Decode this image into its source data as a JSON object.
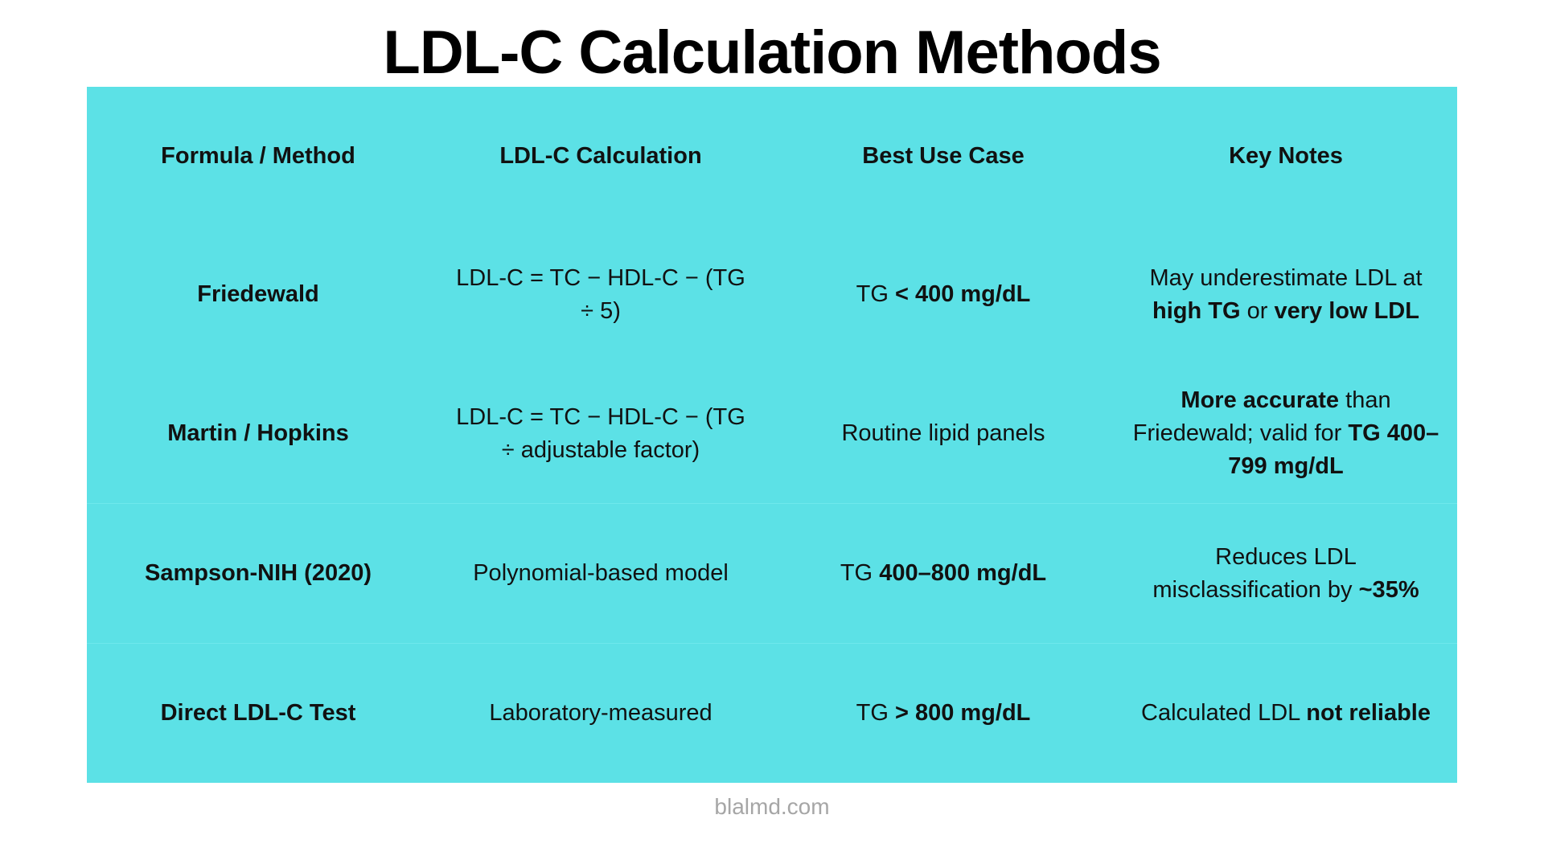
{
  "header": {
    "title": "LDL-C Calculation Methods"
  },
  "table": {
    "columns": [
      "Formula / Method",
      "LDL-C Calculation",
      "Best Use Case",
      "Key Notes"
    ],
    "rows": [
      [
        [
          {
            "text": "Friedewald",
            "bold": true
          }
        ],
        [
          {
            "text": "LDL-C = TC − HDL-C − (TG ÷ 5)",
            "bold": false
          }
        ],
        [
          {
            "text": "TG ",
            "bold": false
          },
          {
            "text": "< 400 mg/dL",
            "bold": true
          }
        ],
        [
          {
            "text": "May underestimate LDL at ",
            "bold": false
          },
          {
            "text": "high TG",
            "bold": true
          },
          {
            "text": " or ",
            "bold": false
          },
          {
            "text": "very low LDL",
            "bold": true
          }
        ]
      ],
      [
        [
          {
            "text": "Martin / Hopkins",
            "bold": true
          }
        ],
        [
          {
            "text": "LDL-C = TC − HDL-C − (TG ÷ adjustable factor)",
            "bold": false
          }
        ],
        [
          {
            "text": "Routine lipid panels",
            "bold": false
          }
        ],
        [
          {
            "text": "More accurate",
            "bold": true
          },
          {
            "text": " than Friedewald; valid for ",
            "bold": false
          },
          {
            "text": "TG 400–799 mg/dL",
            "bold": true
          }
        ]
      ],
      [
        [
          {
            "text": "Sampson-NIH (2020)",
            "bold": true
          }
        ],
        [
          {
            "text": "Polynomial-based model",
            "bold": false
          }
        ],
        [
          {
            "text": "TG ",
            "bold": false
          },
          {
            "text": "400–800 mg/dL",
            "bold": true
          }
        ],
        [
          {
            "text": "Reduces LDL misclassification by ",
            "bold": false
          },
          {
            "text": "~35%",
            "bold": true
          }
        ]
      ],
      [
        [
          {
            "text": "Direct LDL-C Test",
            "bold": true
          }
        ],
        [
          {
            "text": "Laboratory-measured",
            "bold": false
          }
        ],
        [
          {
            "text": "TG ",
            "bold": false
          },
          {
            "text": "> 800 mg/dL",
            "bold": true
          }
        ],
        [
          {
            "text": "Calculated LDL ",
            "bold": false
          },
          {
            "text": "not reliable",
            "bold": true
          }
        ]
      ]
    ]
  },
  "footer": {
    "source": "blalmd.com"
  }
}
